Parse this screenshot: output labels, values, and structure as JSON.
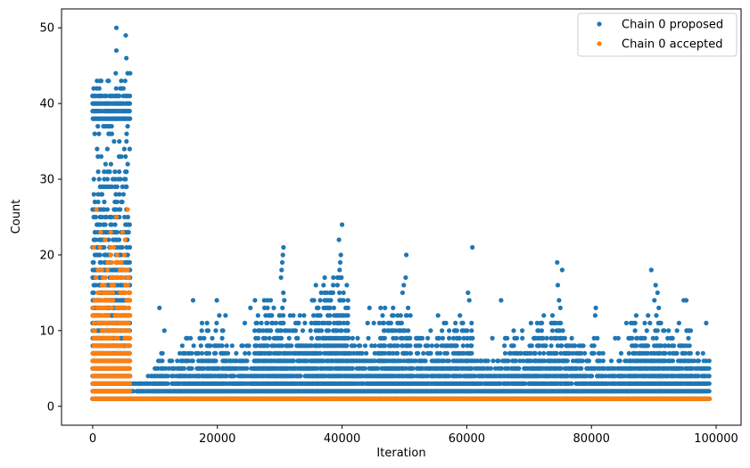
{
  "chart_data": {
    "type": "scatter",
    "xlabel": "Iteration",
    "ylabel": "Count",
    "xlim": [
      -5000,
      104000
    ],
    "ylim": [
      -2.5,
      52.5
    ],
    "xticks": [
      0,
      20000,
      40000,
      60000,
      80000,
      100000
    ],
    "xtick_labels": [
      "0",
      "20000",
      "40000",
      "60000",
      "80000",
      "100000"
    ],
    "yticks": [
      0,
      10,
      20,
      30,
      40,
      50
    ],
    "ytick_labels": [
      "0",
      "10",
      "20",
      "30",
      "40",
      "50"
    ],
    "grid": false,
    "legend": "top-right",
    "series": [
      {
        "name": "Chain 0 proposed",
        "color": "#1f77b4",
        "clusters": [
          {
            "x": [
              0,
              6000
            ],
            "y": [
              1,
              37
            ]
          },
          {
            "x": [
              0,
              6000
            ],
            "y": [
              38,
              43
            ]
          },
          {
            "x": [
              6000,
              10000
            ],
            "y": [
              1,
              4
            ]
          },
          {
            "x": [
              10000,
              14000
            ],
            "y": [
              1,
              7
            ]
          },
          {
            "x": [
              14000,
              17000
            ],
            "y": [
              1,
              9
            ]
          },
          {
            "x": [
              17000,
              21000
            ],
            "y": [
              1,
              11
            ]
          },
          {
            "x": [
              21000,
              26000
            ],
            "y": [
              1,
              8
            ]
          },
          {
            "x": [
              26000,
              31000
            ],
            "y": [
              1,
              15
            ]
          },
          {
            "x": [
              31000,
              36000
            ],
            "y": [
              1,
              12
            ]
          },
          {
            "x": [
              36000,
              41000
            ],
            "y": [
              1,
              17
            ]
          },
          {
            "x": [
              41000,
              46000
            ],
            "y": [
              1,
              9
            ]
          },
          {
            "x": [
              46000,
              51000
            ],
            "y": [
              1,
              13
            ]
          },
          {
            "x": [
              51000,
              56000
            ],
            "y": [
              1,
              9
            ]
          },
          {
            "x": [
              56000,
              61000
            ],
            "y": [
              1,
              12
            ]
          },
          {
            "x": [
              61000,
              66000
            ],
            "y": [
              1,
              6
            ]
          },
          {
            "x": [
              66000,
              71000
            ],
            "y": [
              1,
              10
            ]
          },
          {
            "x": [
              71000,
              76000
            ],
            "y": [
              1,
              12
            ]
          },
          {
            "x": [
              76000,
              81000
            ],
            "y": [
              1,
              9
            ]
          },
          {
            "x": [
              81000,
              86000
            ],
            "y": [
              1,
              7
            ]
          },
          {
            "x": [
              86000,
              91000
            ],
            "y": [
              1,
              12
            ]
          },
          {
            "x": [
              91000,
              96000
            ],
            "y": [
              1,
              11
            ]
          },
          {
            "x": [
              96000,
              99000
            ],
            "y": [
              1,
              7
            ]
          }
        ],
        "points": [
          [
            3800,
            50
          ],
          [
            5300,
            49
          ],
          [
            5400,
            46
          ],
          [
            3800,
            47
          ],
          [
            5600,
            44
          ],
          [
            6000,
            44
          ],
          [
            1200,
            43
          ],
          [
            5200,
            43
          ],
          [
            3700,
            44
          ],
          [
            40000,
            24
          ],
          [
            39500,
            22
          ],
          [
            39800,
            20
          ],
          [
            39700,
            19
          ],
          [
            39600,
            18
          ],
          [
            39900,
            17
          ],
          [
            30600,
            21
          ],
          [
            30500,
            20
          ],
          [
            30400,
            19
          ],
          [
            30300,
            18
          ],
          [
            30200,
            17
          ],
          [
            50300,
            20
          ],
          [
            50200,
            17
          ],
          [
            49900,
            16
          ],
          [
            49700,
            15
          ],
          [
            60900,
            21
          ],
          [
            60200,
            15
          ],
          [
            60400,
            14
          ],
          [
            74500,
            19
          ],
          [
            75300,
            18
          ],
          [
            74600,
            16
          ],
          [
            74800,
            14
          ],
          [
            75000,
            13
          ],
          [
            89600,
            18
          ],
          [
            90300,
            16
          ],
          [
            90600,
            15
          ],
          [
            90100,
            14
          ],
          [
            90800,
            13
          ],
          [
            35800,
            16
          ],
          [
            35500,
            14
          ],
          [
            35200,
            14
          ],
          [
            38600,
            17
          ],
          [
            38400,
            15
          ],
          [
            16100,
            14
          ],
          [
            19900,
            14
          ],
          [
            10700,
            13
          ],
          [
            25300,
            13
          ],
          [
            44400,
            13
          ],
          [
            65500,
            14
          ],
          [
            80700,
            13
          ],
          [
            80600,
            12
          ],
          [
            94800,
            14
          ],
          [
            95200,
            14
          ],
          [
            55400,
            12
          ],
          [
            70300,
            11
          ],
          [
            71300,
            11
          ],
          [
            85600,
            11
          ],
          [
            98400,
            11
          ],
          [
            11500,
            10
          ],
          [
            20300,
            12
          ],
          [
            21300,
            12
          ],
          [
            24400,
            11
          ],
          [
            26200,
            11
          ],
          [
            44100,
            11
          ],
          [
            45100,
            11
          ],
          [
            46700,
            11
          ],
          [
            54200,
            10
          ],
          [
            58100,
            10
          ],
          [
            64100,
            9
          ],
          [
            68900,
            10
          ],
          [
            78400,
            8
          ],
          [
            83800,
            9
          ],
          [
            84300,
            9
          ]
        ]
      },
      {
        "name": "Chain 0 accepted",
        "color": "#ff7f0e",
        "clusters": [
          {
            "x": [
              0,
              6000
            ],
            "y": [
              1,
              21
            ]
          },
          {
            "x": [
              6000,
              99000
            ],
            "y": [
              1,
              1
            ]
          }
        ],
        "points": [
          [
            600,
            26
          ],
          [
            3800,
            25
          ],
          [
            1300,
            23
          ],
          [
            2900,
            23
          ],
          [
            4800,
            23
          ],
          [
            5200,
            22
          ],
          [
            2000,
            22
          ],
          [
            3400,
            21
          ],
          [
            5600,
            26
          ]
        ]
      }
    ]
  }
}
